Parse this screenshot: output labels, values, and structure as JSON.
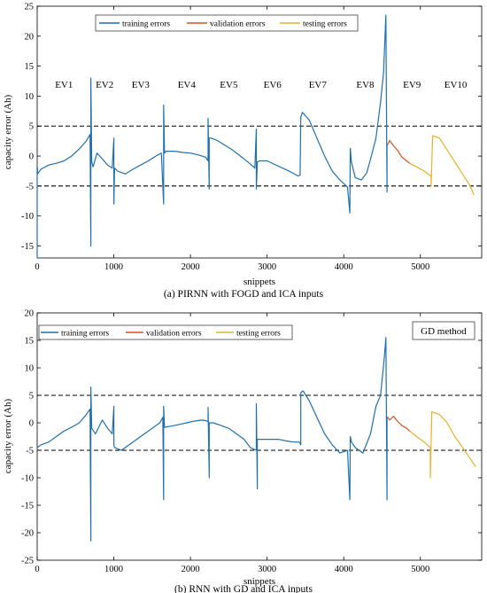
{
  "colors": {
    "training": "#1f6fb2",
    "validation": "#d4521f",
    "testing": "#e8b12a",
    "threshold": "#000000"
  },
  "chart_data": [
    {
      "type": "line",
      "caption": "(a) PIRNN with FOGD and ICA inputs",
      "xlabel": "snippets",
      "ylabel": "capacity error (Ah)",
      "xlim": [
        0,
        5800
      ],
      "ylim": [
        -17,
        25
      ],
      "xticks": [
        0,
        1000,
        2000,
        3000,
        4000,
        5000
      ],
      "yticks": [
        -15,
        -10,
        -5,
        0,
        5,
        10,
        15,
        20,
        25
      ],
      "grid": false,
      "legend": {
        "placement": "top-center",
        "entries": [
          "training errors",
          "validation errors",
          "testing errors"
        ]
      },
      "thresholds": [
        5,
        -5
      ],
      "segment_labels": [
        {
          "label": "EV1",
          "x": 350
        },
        {
          "label": "EV2",
          "x": 880
        },
        {
          "label": "EV3",
          "x": 1350
        },
        {
          "label": "EV4",
          "x": 1950
        },
        {
          "label": "EV5",
          "x": 2500
        },
        {
          "label": "EV6",
          "x": 3070
        },
        {
          "label": "EV7",
          "x": 3660
        },
        {
          "label": "EV8",
          "x": 4280
        },
        {
          "label": "EV9",
          "x": 4890
        },
        {
          "label": "EV10",
          "x": 5460
        }
      ],
      "series": [
        {
          "name": "training errors",
          "color_key": "training",
          "x": [
            0,
            0,
            5,
            5,
            50,
            150,
            250,
            350,
            450,
            550,
            640,
            690,
            700,
            700,
            712,
            712,
            730,
            780,
            850,
            920,
            980,
            1000,
            1000,
            1010,
            1010,
            1050,
            1150,
            1250,
            1350,
            1450,
            1550,
            1620,
            1650,
            1650,
            1662,
            1662,
            1680,
            1800,
            1900,
            2000,
            2100,
            2200,
            2230,
            2230,
            2245,
            2245,
            2270,
            2350,
            2450,
            2550,
            2650,
            2750,
            2840,
            2860,
            2860,
            2872,
            2872,
            2900,
            3000,
            3100,
            3200,
            3300,
            3400,
            3430,
            3440,
            3460,
            3550,
            3650,
            3750,
            3850,
            3950,
            4050,
            4080,
            4085,
            4085,
            4100,
            4100,
            4150,
            4230,
            4300,
            4350,
            4420,
            4480,
            4520,
            4550,
            4565,
            4565,
            4578
          ],
          "y": [
            -17,
            -2,
            -2,
            -3,
            -2.2,
            -1.5,
            -1.2,
            -0.8,
            0,
            1.2,
            2.5,
            3.6,
            -15,
            13,
            -1,
            -1,
            -1.8,
            0.5,
            -0.5,
            -1.5,
            -2,
            3,
            -8,
            -2,
            -2,
            -2.5,
            -3,
            -2.2,
            -1.5,
            -0.8,
            0,
            0.5,
            -8,
            8.5,
            0.5,
            0.5,
            0.8,
            0.8,
            0.6,
            0.5,
            0.2,
            -0.2,
            -0.8,
            6.3,
            -5.5,
            3,
            3,
            2.6,
            1.8,
            1,
            0,
            -1,
            -2,
            4.5,
            -5.5,
            -1,
            -1,
            -0.8,
            -0.8,
            -1.4,
            -2,
            -2.6,
            -3.3,
            -3.2,
            6.5,
            7.3,
            6,
            3,
            0,
            -2.5,
            -4,
            -5.2,
            -9.5,
            1.3,
            1.3,
            -1,
            -1,
            -3.6,
            -4,
            -2.8,
            -0.5,
            3,
            9,
            14,
            23.5,
            -6,
            2,
            2
          ]
        },
        {
          "name": "validation errors",
          "color_key": "validation",
          "x": [
            4578,
            4600,
            4650,
            4700,
            4760,
            4820,
            4860
          ],
          "y": [
            2,
            2.6,
            1.7,
            1,
            -0.2,
            -0.8,
            -1.2
          ]
        },
        {
          "name": "testing errors",
          "color_key": "testing",
          "x": [
            4860,
            4950,
            5050,
            5140,
            5140,
            5160,
            5250,
            5350,
            5450,
            5550,
            5650,
            5700
          ],
          "y": [
            -1.2,
            -1.8,
            -2.5,
            -3.4,
            -5,
            3.4,
            3,
            1,
            -1,
            -3,
            -5,
            -6.5
          ]
        }
      ]
    },
    {
      "type": "line",
      "caption": "(b) RNN with GD and ICA inputs",
      "xlabel": "snippets",
      "ylabel": "capacity error (Ah)",
      "xlim": [
        0,
        5800
      ],
      "ylim": [
        -25,
        20
      ],
      "xticks": [
        0,
        1000,
        2000,
        3000,
        4000,
        5000
      ],
      "yticks": [
        -25,
        -20,
        -15,
        -10,
        -5,
        0,
        5,
        10,
        15,
        20
      ],
      "grid": false,
      "legend": {
        "placement": "top-left",
        "entries": [
          "training errors",
          "validation errors",
          "testing errors"
        ]
      },
      "annotation": "GD method",
      "thresholds": [
        5,
        -5
      ],
      "series": [
        {
          "name": "training errors",
          "color_key": "training",
          "x": [
            0,
            50,
            150,
            250,
            350,
            450,
            550,
            640,
            690,
            700,
            700,
            712,
            712,
            760,
            850,
            920,
            980,
            1000,
            1000,
            1010,
            1010,
            1100,
            1200,
            1300,
            1400,
            1500,
            1600,
            1640,
            1650,
            1650,
            1662,
            1662,
            1750,
            1850,
            1950,
            2050,
            2150,
            2200,
            2230,
            2230,
            2245,
            2245,
            2300,
            2400,
            2500,
            2600,
            2700,
            2780,
            2860,
            2860,
            2872,
            2872,
            2950,
            3050,
            3150,
            3250,
            3350,
            3420,
            3440,
            3440,
            3470,
            3550,
            3650,
            3750,
            3850,
            3950,
            4050,
            4080,
            4085,
            4085,
            4100,
            4100,
            4150,
            4250,
            4350,
            4420,
            4480,
            4530,
            4550,
            4565,
            4565,
            4578
          ],
          "y": [
            -4.5,
            -4,
            -3.5,
            -2.5,
            -1.5,
            -0.8,
            0,
            1.5,
            2.5,
            -21.5,
            6.5,
            -1,
            -1,
            -2,
            0.5,
            -1,
            -2,
            3,
            -4,
            -4.5,
            -4.5,
            -5,
            -4,
            -3,
            -2,
            -1,
            0,
            1,
            -14,
            3,
            -0.8,
            -0.8,
            -0.6,
            -0.3,
            0,
            0.3,
            0.5,
            0.4,
            0.2,
            2.8,
            -10,
            0,
            0,
            -0.5,
            -1,
            -2,
            -3,
            -4.5,
            -5,
            3.5,
            -12,
            -3,
            -3,
            -3,
            -3,
            -3.3,
            -3.5,
            -3.5,
            -4,
            5.5,
            5.8,
            4,
            1,
            -2,
            -4,
            -5.5,
            -5,
            -14,
            -2.5,
            -2.5,
            -3.5,
            -3.5,
            -4.5,
            -5.5,
            -2,
            3,
            5,
            12,
            15.5,
            -14,
            1,
            1
          ]
        },
        {
          "name": "validation errors",
          "color_key": "validation",
          "x": [
            4578,
            4600,
            4650,
            4700,
            4760,
            4820,
            4860
          ],
          "y": [
            1,
            0.5,
            1.2,
            0.3,
            -0.5,
            -1,
            -1.5
          ]
        },
        {
          "name": "testing errors",
          "color_key": "testing",
          "x": [
            4860,
            4950,
            5050,
            5130,
            5130,
            5150,
            5250,
            5350,
            5450,
            5550,
            5650,
            5720
          ],
          "y": [
            -1.5,
            -2.5,
            -3.5,
            -4.5,
            -10,
            2,
            1.5,
            0,
            -2.5,
            -4.5,
            -6.5,
            -8
          ]
        }
      ]
    }
  ]
}
